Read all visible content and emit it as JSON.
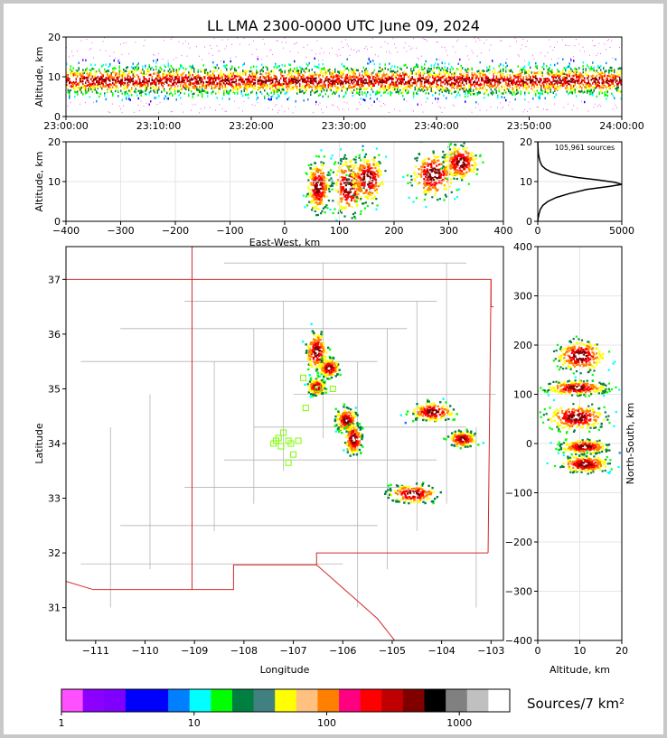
{
  "chart_data": [
    {
      "id": "time-height",
      "type": "heatmap",
      "title": "LL LMA 2300-0000 UTC June 09, 2024",
      "ylabel": "Altitude, km",
      "ylim": [
        0,
        20
      ],
      "yticks": [
        0,
        10,
        20
      ],
      "xticks": [
        "23:00:00",
        "23:10:00",
        "23:20:00",
        "23:30:00",
        "23:40:00",
        "23:50:00",
        "24:00:00"
      ],
      "peak_altitude_km": 9
    },
    {
      "id": "ew-height",
      "type": "heatmap",
      "xlabel": "East-West, km",
      "ylabel": "Altitude, km",
      "xlim": [
        -400,
        400
      ],
      "ylim": [
        0,
        20
      ],
      "xticks": [
        -400,
        -300,
        -200,
        -100,
        0,
        100,
        200,
        300,
        400
      ],
      "yticks": [
        0,
        10,
        20
      ],
      "cells": [
        {
          "x": 60,
          "z": 9,
          "sx": 14,
          "sz": 4.5
        },
        {
          "x": 115,
          "z": 9,
          "sx": 20,
          "sz": 5
        },
        {
          "x": 150,
          "z": 11,
          "sx": 22,
          "sz": 4
        },
        {
          "x": 270,
          "z": 12,
          "sx": 28,
          "sz": 4
        },
        {
          "x": 320,
          "z": 15,
          "sx": 22,
          "sz": 3
        }
      ]
    },
    {
      "id": "alt-histogram",
      "type": "line",
      "annotation": "105,961 sources",
      "xlim": [
        0,
        5000
      ],
      "ylim": [
        0,
        20
      ],
      "xticks": [
        0,
        5000
      ],
      "yticks": [
        0,
        10,
        20
      ],
      "points": [
        [
          0,
          0
        ],
        [
          30,
          1
        ],
        [
          80,
          2
        ],
        [
          150,
          3
        ],
        [
          300,
          4
        ],
        [
          600,
          5
        ],
        [
          1100,
          6
        ],
        [
          1900,
          7
        ],
        [
          2900,
          8
        ],
        [
          4300,
          8.8
        ],
        [
          5000,
          9.3
        ],
        [
          4600,
          9.8
        ],
        [
          3600,
          10.4
        ],
        [
          2400,
          11
        ],
        [
          1400,
          11.7
        ],
        [
          800,
          12.4
        ],
        [
          450,
          13.2
        ],
        [
          250,
          14
        ],
        [
          140,
          15
        ],
        [
          80,
          16
        ],
        [
          40,
          17
        ],
        [
          20,
          18
        ],
        [
          10,
          19
        ],
        [
          0,
          20
        ]
      ]
    },
    {
      "id": "plan-view",
      "type": "heatmap",
      "xlabel": "Longitude",
      "ylabel": "Latitude",
      "xlim": [
        -111.6,
        -102.75
      ],
      "ylim": [
        30.4,
        37.6
      ],
      "xticks": [
        -111,
        -110,
        -109,
        -108,
        -107,
        -106,
        -105,
        -104,
        -103
      ],
      "yticks": [
        31,
        32,
        33,
        34,
        35,
        36,
        37
      ],
      "cells": [
        {
          "lon": -106.55,
          "lat": 35.7,
          "sx": 0.15,
          "sy": 0.25
        },
        {
          "lon": -106.3,
          "lat": 35.4,
          "sx": 0.15,
          "sy": 0.12
        },
        {
          "lon": -106.55,
          "lat": 35.05,
          "sx": 0.12,
          "sy": 0.1
        },
        {
          "lon": -105.95,
          "lat": 34.45,
          "sx": 0.15,
          "sy": 0.15
        },
        {
          "lon": -105.8,
          "lat": 34.1,
          "sx": 0.12,
          "sy": 0.2
        },
        {
          "lon": -104.2,
          "lat": 34.6,
          "sx": 0.3,
          "sy": 0.12
        },
        {
          "lon": -103.6,
          "lat": 34.1,
          "sx": 0.2,
          "sy": 0.1
        },
        {
          "lon": -104.6,
          "lat": 33.1,
          "sx": 0.35,
          "sy": 0.12
        }
      ],
      "stations": [
        [
          -107.35,
          34.05
        ],
        [
          -107.2,
          34.2
        ],
        [
          -107.05,
          34.0
        ],
        [
          -106.75,
          34.65
        ],
        [
          -107.1,
          33.65
        ],
        [
          -107.25,
          33.95
        ],
        [
          -106.8,
          35.2
        ],
        [
          -106.5,
          35.0
        ],
        [
          -106.2,
          35.0
        ],
        [
          -107.4,
          34.0
        ],
        [
          -107.0,
          33.8
        ],
        [
          -106.9,
          34.05
        ],
        [
          -107.1,
          34.05
        ],
        [
          -107.3,
          34.1
        ]
      ]
    },
    {
      "id": "ns-height",
      "type": "heatmap",
      "xlabel": "Altitude, km",
      "ylabel": "North-South, km",
      "xlim": [
        0,
        20
      ],
      "ylim": [
        -400,
        400
      ],
      "xticks": [
        0,
        10,
        20
      ],
      "yticks": [
        -400,
        -300,
        -200,
        -100,
        0,
        100,
        200,
        300,
        400
      ],
      "cells": [
        {
          "z": 10,
          "y": 180,
          "sz": 4,
          "sy": 22
        },
        {
          "z": 9,
          "y": 115,
          "sz": 5,
          "sy": 10
        },
        {
          "z": 9,
          "y": 55,
          "sz": 5,
          "sy": 18
        },
        {
          "z": 11,
          "y": -5,
          "sz": 4,
          "sy": 10
        },
        {
          "z": 11,
          "y": -40,
          "sz": 4,
          "sy": 12
        }
      ]
    }
  ],
  "colorbar": {
    "label": "Sources/7 km²",
    "ticks": [
      "1",
      "10",
      "100",
      "1000"
    ],
    "colors": [
      "#ff50ff",
      "#8c00ff",
      "#8000ff",
      "#0000ff",
      "#0000ff",
      "#0080ff",
      "#00ffff",
      "#00ff00",
      "#008040",
      "#408080",
      "#ffff00",
      "#ffc080",
      "#ff8000",
      "#ff0080",
      "#ff0000",
      "#c00000",
      "#800000",
      "#000000",
      "#808080",
      "#c0c0c0",
      "#ffffff"
    ]
  },
  "map": {
    "state_border_color": "#d62728",
    "county_color": "#b4b4b4",
    "station_color": "#7cfc00"
  }
}
